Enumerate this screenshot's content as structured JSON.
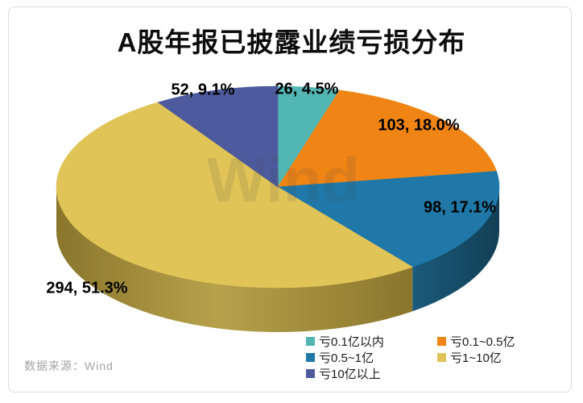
{
  "title": "A股年报已披露业绩亏损分布",
  "source": "数据来源：Wind",
  "watermark": "Wind",
  "chart_data": {
    "type": "pie",
    "style": "3d",
    "title": "A股年报已披露业绩亏损分布",
    "start_angle": "top",
    "direction": "clockwise",
    "total": 573,
    "slices": [
      {
        "name": "亏0.1亿以内",
        "value": 26,
        "pct": 4.5,
        "label": "26, 4.5%",
        "color": "#52b6b3"
      },
      {
        "name": "亏0.1~0.5亿",
        "value": 103,
        "pct": 18.0,
        "label": "103, 18.0%",
        "color": "#f08515",
        "side_color": "#a85a0e"
      },
      {
        "name": "亏0.5~1亿",
        "value": 98,
        "pct": 17.1,
        "label": "98, 17.1%",
        "color": "#1f78a8",
        "side_color": "#164f6a"
      },
      {
        "name": "亏1~10亿",
        "value": 294,
        "pct": 51.3,
        "label": "294, 51.3%",
        "color": "#e0c457",
        "side_color": "#a08a38"
      },
      {
        "name": "亏10亿以上",
        "value": 52,
        "pct": 9.1,
        "label": "52, 9.1%",
        "color": "#4d5b9e",
        "side_color": "#343f73"
      }
    ]
  },
  "legend": {
    "columns": [
      {
        "items": [
          {
            "label": "亏0.1亿以内",
            "color": "#52b6b3"
          },
          {
            "label": "亏0.5~1亿",
            "color": "#1f78a8"
          },
          {
            "label": "亏10亿以上",
            "color": "#4d5b9e"
          }
        ]
      },
      {
        "items": [
          {
            "label": "亏0.1~0.5亿",
            "color": "#f08515"
          },
          {
            "label": "亏1~10亿",
            "color": "#e0c457"
          }
        ]
      }
    ]
  }
}
